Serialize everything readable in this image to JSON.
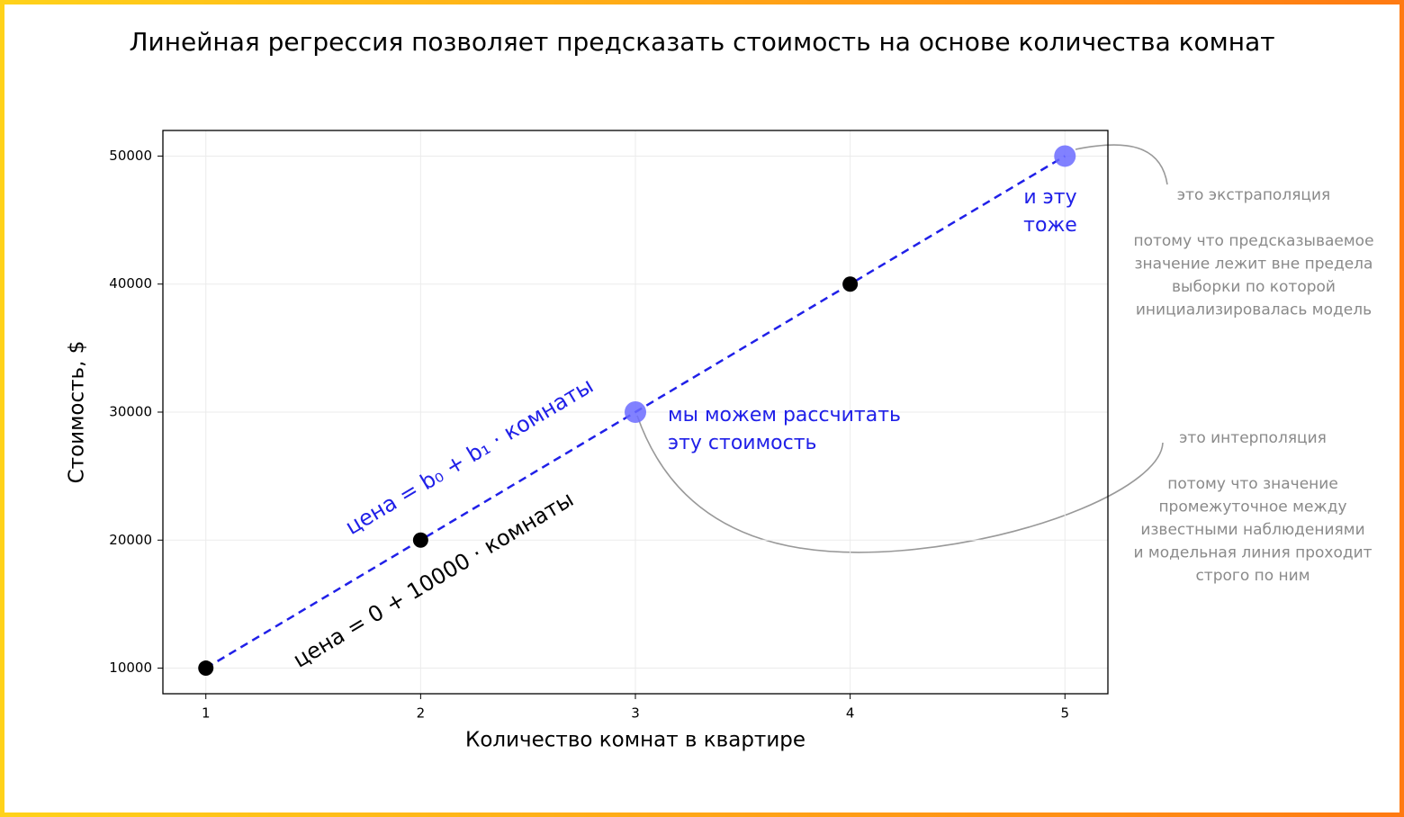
{
  "chart_data": {
    "type": "scatter",
    "title": "Линейная регрессия позволяет предсказать стоимость на основе количества комнат",
    "x_label": "Количество комнат в квартире",
    "y_label": "Стоимость, $",
    "xlim": [
      0.8,
      5.2
    ],
    "ylim": [
      8000,
      52000
    ],
    "xticks": [
      1,
      2,
      3,
      4,
      5
    ],
    "yticks": [
      10000,
      20000,
      30000,
      40000,
      50000
    ],
    "grid": true,
    "series": [
      {
        "color": "#000000",
        "x": [
          1,
          2,
          4
        ],
        "values": [
          10000,
          20000,
          40000
        ]
      },
      {
        "color": "#6b6bff",
        "x": [
          3,
          5
        ],
        "values": [
          30000,
          50000
        ]
      }
    ],
    "line": {
      "color": "#2020e8",
      "dashed": true,
      "x": [
        1,
        5
      ],
      "values": [
        10000,
        50000
      ]
    },
    "annotations": {
      "equation_general": "цена = b₀ + b₁ · комнаты",
      "equation_fitted": "цена = 0 + 10000 · комнаты",
      "predict_middle": [
        "мы можем рассчитать",
        "эту стоимость"
      ],
      "predict_end": [
        "и эту",
        "тоже"
      ],
      "extrapolation_title": "это экстраполяция",
      "extrapolation_text": [
        "потому что предсказываемое",
        "значение лежит вне предела",
        "выборки по которой",
        "инициализировалась модель"
      ],
      "interpolation_title": "это интерполяция",
      "interpolation_text": [
        "потому что значение",
        "промежуточное между",
        "известными наблюдениями",
        "и модельная линия проходит",
        "строго по ним"
      ]
    }
  }
}
